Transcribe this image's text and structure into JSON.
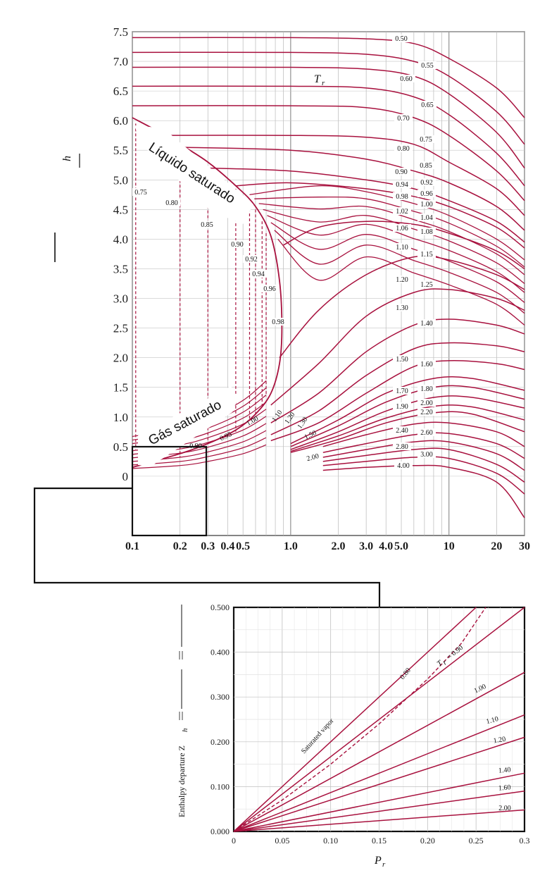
{
  "chart_data": [
    {
      "type": "line",
      "title": "",
      "xlabel": "",
      "ylabel": "h",
      "x_scale": "log",
      "xlim": [
        0.1,
        30
      ],
      "ylim": [
        -1.0,
        7.5
      ],
      "x_ticks": [
        "0.1",
        "0.2",
        "0.3",
        "0.4",
        "0.5",
        "1.0",
        "2.0",
        "3.0",
        "4.0",
        "5.0",
        "10",
        "20",
        "30"
      ],
      "y_ticks": [
        "7.5",
        "7.0",
        "6.5",
        "6.0",
        "5.5",
        "5.0",
        "4.5",
        "4.0",
        "3.5",
        "3.0",
        "2.5",
        "2.0",
        "1.5",
        "1.0",
        "0.5",
        "0"
      ],
      "grid": true,
      "series_parameter": "T_r",
      "series_parameter_label": "T",
      "series_parameter_sub": "r",
      "annotations": [
        "Líquido saturado",
        "Gás saturado"
      ],
      "curve_color": "#a8113e",
      "subcooled_series": [
        {
          "name": "0.50",
          "values": [
            [
              0.1,
              7.4
            ],
            [
              1.0,
              7.4
            ],
            [
              3.0,
              7.38
            ],
            [
              6.0,
              7.3
            ],
            [
              10,
              7.05
            ],
            [
              20,
              6.55
            ],
            [
              30,
              6.05
            ]
          ]
        },
        {
          "name": "0.55",
          "values": [
            [
              0.1,
              7.15
            ],
            [
              1.0,
              7.15
            ],
            [
              3.0,
              7.12
            ],
            [
              6.0,
              7.0
            ],
            [
              10,
              6.75
            ],
            [
              20,
              6.15
            ],
            [
              30,
              5.6
            ]
          ]
        },
        {
          "name": "0.60",
          "values": [
            [
              0.1,
              6.9
            ],
            [
              1.0,
              6.9
            ],
            [
              3.0,
              6.87
            ],
            [
              6.0,
              6.75
            ],
            [
              10,
              6.45
            ],
            [
              20,
              5.8
            ],
            [
              30,
              5.2
            ]
          ]
        },
        {
          "name": "0.65",
          "values": [
            [
              0.1,
              6.58
            ],
            [
              1.0,
              6.58
            ],
            [
              3.0,
              6.55
            ],
            [
              6.0,
              6.4
            ],
            [
              10,
              6.1
            ],
            [
              20,
              5.45
            ],
            [
              30,
              4.9
            ]
          ]
        },
        {
          "name": "0.70",
          "values": [
            [
              0.1,
              6.25
            ],
            [
              1.0,
              6.25
            ],
            [
              3.0,
              6.22
            ],
            [
              6.0,
              6.05
            ],
            [
              10,
              5.75
            ],
            [
              20,
              5.15
            ],
            [
              30,
              4.65
            ]
          ]
        },
        {
          "name": "0.75",
          "values": [
            [
              0.13,
              5.75
            ],
            [
              1.0,
              5.75
            ],
            [
              3.0,
              5.72
            ],
            [
              6.0,
              5.6
            ],
            [
              10,
              5.3
            ],
            [
              20,
              4.85
            ],
            [
              30,
              4.4
            ]
          ]
        },
        {
          "name": "0.80",
          "values": [
            [
              0.2,
              5.55
            ],
            [
              1.0,
              5.5
            ],
            [
              3.0,
              5.35
            ],
            [
              6.0,
              5.15
            ],
            [
              10,
              4.95
            ],
            [
              20,
              4.55
            ],
            [
              30,
              4.15
            ]
          ]
        }
      ],
      "supercritical_series": [
        {
          "name": "0.85",
          "values": [
            [
              0.3,
              5.2
            ],
            [
              1.0,
              5.15
            ],
            [
              3.0,
              5.0
            ],
            [
              6.0,
              4.85
            ],
            [
              10,
              4.65
            ],
            [
              20,
              4.3
            ],
            [
              30,
              3.95
            ]
          ]
        },
        {
          "name": "0.90",
          "values": [
            [
              0.45,
              4.9
            ],
            [
              1.0,
              4.95
            ],
            [
              3.0,
              4.85
            ],
            [
              6.0,
              4.72
            ],
            [
              10,
              4.55
            ],
            [
              20,
              4.2
            ],
            [
              30,
              3.85
            ]
          ]
        },
        {
          "name": "1.00",
          "values": [
            [
              0.9,
              3.9
            ],
            [
              1.5,
              4.2
            ],
            [
              3.0,
              4.3
            ],
            [
              6.0,
              4.25
            ],
            [
              10,
              4.1
            ],
            [
              20,
              3.8
            ],
            [
              30,
              3.5
            ]
          ]
        },
        {
          "name": "1.10",
          "values": [
            [
              0.85,
              2.0
            ],
            [
              1.5,
              2.8
            ],
            [
              3.0,
              3.4
            ],
            [
              6.0,
              3.7
            ],
            [
              10,
              3.65
            ],
            [
              20,
              3.4
            ],
            [
              30,
              3.15
            ]
          ]
        },
        {
          "name": "1.20",
          "values": [
            [
              0.75,
              1.2
            ],
            [
              1.5,
              1.9
            ],
            [
              3.0,
              2.7
            ],
            [
              6.0,
              3.1
            ],
            [
              10,
              3.15
            ],
            [
              20,
              3.0
            ],
            [
              30,
              2.8
            ]
          ]
        },
        {
          "name": "1.30",
          "values": [
            [
              0.75,
              0.9
            ],
            [
              1.5,
              1.4
            ],
            [
              3.0,
              2.1
            ],
            [
              6.0,
              2.55
            ],
            [
              10,
              2.65
            ],
            [
              20,
              2.55
            ],
            [
              30,
              2.4
            ]
          ]
        },
        {
          "name": "1.40",
          "values": [
            [
              0.75,
              0.7
            ],
            [
              1.5,
              1.1
            ],
            [
              3.0,
              1.7
            ],
            [
              6.0,
              2.15
            ],
            [
              10,
              2.25
            ],
            [
              20,
              2.2
            ],
            [
              30,
              2.1
            ]
          ]
        },
        {
          "name": "1.50",
          "values": [
            [
              0.75,
              0.6
            ],
            [
              1.5,
              0.9
            ],
            [
              3.0,
              1.4
            ],
            [
              6.0,
              1.85
            ],
            [
              10,
              1.95
            ],
            [
              20,
              1.9
            ],
            [
              30,
              1.8
            ]
          ]
        },
        {
          "name": "1.60",
          "values": [
            [
              1.0,
              0.55
            ],
            [
              2.0,
              0.95
            ],
            [
              4.0,
              1.4
            ],
            [
              8.0,
              1.65
            ],
            [
              14,
              1.65
            ],
            [
              30,
              1.45
            ]
          ]
        },
        {
          "name": "1.70",
          "values": [
            [
              1.0,
              0.5
            ],
            [
              2.0,
              0.85
            ],
            [
              4.0,
              1.25
            ],
            [
              8.0,
              1.5
            ],
            [
              14,
              1.5
            ],
            [
              30,
              1.3
            ]
          ]
        },
        {
          "name": "1.80",
          "values": [
            [
              1.0,
              0.45
            ],
            [
              2.0,
              0.75
            ],
            [
              4.0,
              1.1
            ],
            [
              8.0,
              1.33
            ],
            [
              14,
              1.33
            ],
            [
              30,
              1.15
            ]
          ]
        },
        {
          "name": "1.90",
          "values": [
            [
              1.0,
              0.42
            ],
            [
              2.0,
              0.68
            ],
            [
              4.0,
              0.98
            ],
            [
              8.0,
              1.18
            ],
            [
              14,
              1.17
            ],
            [
              30,
              0.95
            ]
          ]
        },
        {
          "name": "2.00",
          "values": [
            [
              1.0,
              0.4
            ],
            [
              2.0,
              0.62
            ],
            [
              4.0,
              0.9
            ],
            [
              8.0,
              1.07
            ],
            [
              14,
              1.05
            ],
            [
              30,
              0.75
            ]
          ]
        },
        {
          "name": "2.20",
          "values": [
            [
              1.6,
              0.5
            ],
            [
              3.0,
              0.7
            ],
            [
              6.0,
              0.88
            ],
            [
              10,
              0.9
            ],
            [
              20,
              0.75
            ],
            [
              30,
              0.5
            ]
          ]
        },
        {
          "name": "2.40",
          "values": [
            [
              1.6,
              0.4
            ],
            [
              3.0,
              0.55
            ],
            [
              6.0,
              0.7
            ],
            [
              10,
              0.72
            ],
            [
              20,
              0.55
            ],
            [
              30,
              0.3
            ]
          ]
        },
        {
          "name": "2.60",
          "values": [
            [
              1.6,
              0.32
            ],
            [
              3.0,
              0.45
            ],
            [
              6.0,
              0.58
            ],
            [
              10,
              0.58
            ],
            [
              20,
              0.38
            ],
            [
              30,
              0.1
            ]
          ]
        },
        {
          "name": "2.80",
          "values": [
            [
              1.6,
              0.25
            ],
            [
              3.0,
              0.35
            ],
            [
              6.0,
              0.45
            ],
            [
              10,
              0.45
            ],
            [
              20,
              0.2
            ],
            [
              30,
              -0.1
            ]
          ]
        },
        {
          "name": "3.00",
          "values": [
            [
              1.6,
              0.18
            ],
            [
              3.0,
              0.25
            ],
            [
              6.0,
              0.32
            ],
            [
              10,
              0.3
            ],
            [
              20,
              0.05
            ],
            [
              30,
              -0.3
            ]
          ]
        },
        {
          "name": "4.00",
          "values": [
            [
              1.6,
              0.1
            ],
            [
              3.0,
              0.15
            ],
            [
              6.0,
              0.18
            ],
            [
              10,
              0.15
            ],
            [
              20,
              -0.1
            ],
            [
              30,
              -0.7
            ]
          ]
        }
      ],
      "label_names": [
        "0.50",
        "0.55",
        "0.60",
        "0.65",
        "0.70",
        "0.75",
        "0.80",
        "0.85",
        "0.90",
        "0.92",
        "0.94",
        "0.96",
        "0.98",
        "1.00",
        "1.02",
        "1.04",
        "1.06",
        "1.08",
        "1.10",
        "1.15",
        "1.20",
        "1.25",
        "1.30",
        "1.40",
        "1.50",
        "1.60",
        "1.70",
        "1.80",
        "1.90",
        "2.00",
        "2.20",
        "2.40",
        "2.60",
        "2.80",
        "3.00",
        "4.00"
      ],
      "left_labels": [
        "0.75",
        "0.80",
        "0.85",
        "0.90",
        "0.92",
        "0.94",
        "0.96",
        "0.98"
      ],
      "vapor_labels": [
        "0.90",
        "0.95",
        "1.00",
        "1.10",
        "1.20",
        "1.30",
        "1.50",
        "2.00"
      ]
    },
    {
      "type": "line",
      "title": "",
      "xlabel": "P",
      "xlabel_sub": "r",
      "ylabel": "Enthalpy departure Z",
      "ylabel_sub": "h",
      "xlim": [
        0,
        0.3
      ],
      "ylim": [
        0,
        0.5
      ],
      "x_ticks": [
        "0",
        "0.05",
        "0.10",
        "0.15",
        "0.20",
        "0.25",
        "0.3"
      ],
      "y_ticks": [
        "0.000",
        "0.100",
        "0.200",
        "0.300",
        "0.400",
        "0.500"
      ],
      "grid": true,
      "annotations": [
        "Saturated vapor",
        "T",
        "r",
        "= 0.90"
      ],
      "series": [
        {
          "name": "0.80",
          "values": [
            [
              0,
              0
            ],
            [
              0.25,
              0.5
            ]
          ]
        },
        {
          "name": "0.90",
          "values": [
            [
              0,
              0
            ],
            [
              0.3,
              0.5
            ]
          ]
        },
        {
          "name": "1.00",
          "values": [
            [
              0,
              0
            ],
            [
              0.3,
              0.355
            ]
          ]
        },
        {
          "name": "1.10",
          "values": [
            [
              0,
              0
            ],
            [
              0.3,
              0.26
            ]
          ]
        },
        {
          "name": "1.20",
          "values": [
            [
              0,
              0
            ],
            [
              0.3,
              0.21
            ]
          ]
        },
        {
          "name": "1.40",
          "values": [
            [
              0,
              0
            ],
            [
              0.3,
              0.13
            ]
          ]
        },
        {
          "name": "1.60",
          "values": [
            [
              0,
              0
            ],
            [
              0.3,
              0.09
            ]
          ]
        },
        {
          "name": "2.00",
          "values": [
            [
              0,
              0
            ],
            [
              0.3,
              0.048
            ]
          ]
        }
      ],
      "saturated_vapor": [
        [
          0,
          0
        ],
        [
          0.05,
          0.07
        ],
        [
          0.1,
          0.15
        ],
        [
          0.15,
          0.24
        ],
        [
          0.2,
          0.34
        ],
        [
          0.235,
          0.42
        ],
        [
          0.26,
          0.5
        ]
      ],
      "curve_color": "#a8113e"
    }
  ]
}
